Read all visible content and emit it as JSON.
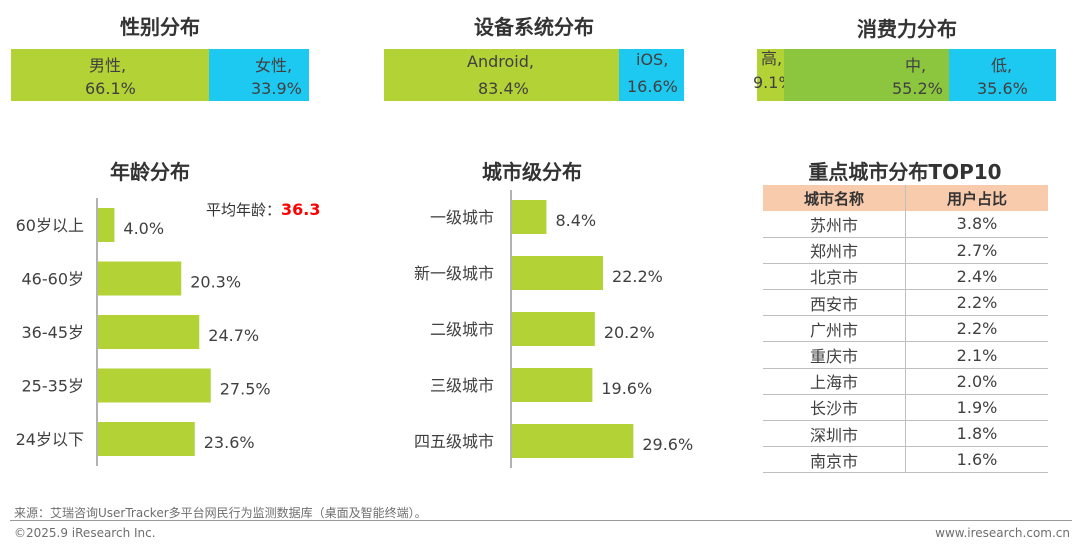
{
  "colors": {
    "green": "#b2d235",
    "cyan": "#1ec9f1",
    "midgreen": "#8cc63f",
    "header_bg": "#f8cbad"
  },
  "chart_data": [
    {
      "type": "bar",
      "stacked": true,
      "orientation": "horizontal",
      "title": "性别分布",
      "segments": [
        {
          "name": "男性,",
          "value_label": "66.1%",
          "value": 66.1
        },
        {
          "name": "女性,",
          "value_label": "33.9%",
          "value": 33.9
        }
      ]
    },
    {
      "type": "bar",
      "stacked": true,
      "orientation": "horizontal",
      "title": "设备系统分布",
      "segments": [
        {
          "name": "Android,",
          "value_label": "83.4%",
          "value": 83.4
        },
        {
          "name": "iOS,",
          "value_label": "16.6%",
          "value": 16.6
        }
      ]
    },
    {
      "type": "bar",
      "stacked": true,
      "orientation": "horizontal",
      "title": "消费力分布",
      "segments": [
        {
          "name": "高,",
          "value_label": "9.1%",
          "value": 9.1
        },
        {
          "name": "中,",
          "value_label": "55.2%",
          "value": 55.2
        },
        {
          "name": "低,",
          "value_label": "35.6%",
          "value": 35.6
        }
      ]
    },
    {
      "type": "bar",
      "orientation": "horizontal",
      "title": "年龄分布",
      "annotation_label": "平均年龄：",
      "annotation_value": "36.3",
      "categories": [
        "60岁以上",
        "46-60岁",
        "36-45岁",
        "25-35岁",
        "24岁以下"
      ],
      "values": [
        4.0,
        20.3,
        24.7,
        27.5,
        23.6
      ],
      "labels": [
        "4.0%",
        "20.3%",
        "24.7%",
        "27.5%",
        "23.6%"
      ]
    },
    {
      "type": "bar",
      "orientation": "horizontal",
      "title": "城市级分布",
      "categories": [
        "一级城市",
        "新一级城市",
        "二级城市",
        "三级城市",
        "四五级城市"
      ],
      "values": [
        8.4,
        22.2,
        20.2,
        19.6,
        29.6
      ],
      "labels": [
        "8.4%",
        "22.2%",
        "20.2%",
        "19.6%",
        "29.6%"
      ]
    },
    {
      "type": "table",
      "title": "重点城市分布TOP10",
      "columns": [
        "城市名称",
        "用户占比"
      ],
      "rows": [
        [
          "苏州市",
          "3.8%"
        ],
        [
          "郑州市",
          "2.7%"
        ],
        [
          "北京市",
          "2.4%"
        ],
        [
          "西安市",
          "2.2%"
        ],
        [
          "广州市",
          "2.2%"
        ],
        [
          "重庆市",
          "2.1%"
        ],
        [
          "上海市",
          "2.0%"
        ],
        [
          "长沙市",
          "1.9%"
        ],
        [
          "深圳市",
          "1.8%"
        ],
        [
          "南京市",
          "1.6%"
        ]
      ]
    }
  ],
  "footer": {
    "source": "来源：艾瑞咨询UserTracker多平台网民行为监测数据库（桌面及智能终端）。",
    "copyright": "©2025.9 iResearch Inc.",
    "website": "www.iresearch.com.cn"
  }
}
